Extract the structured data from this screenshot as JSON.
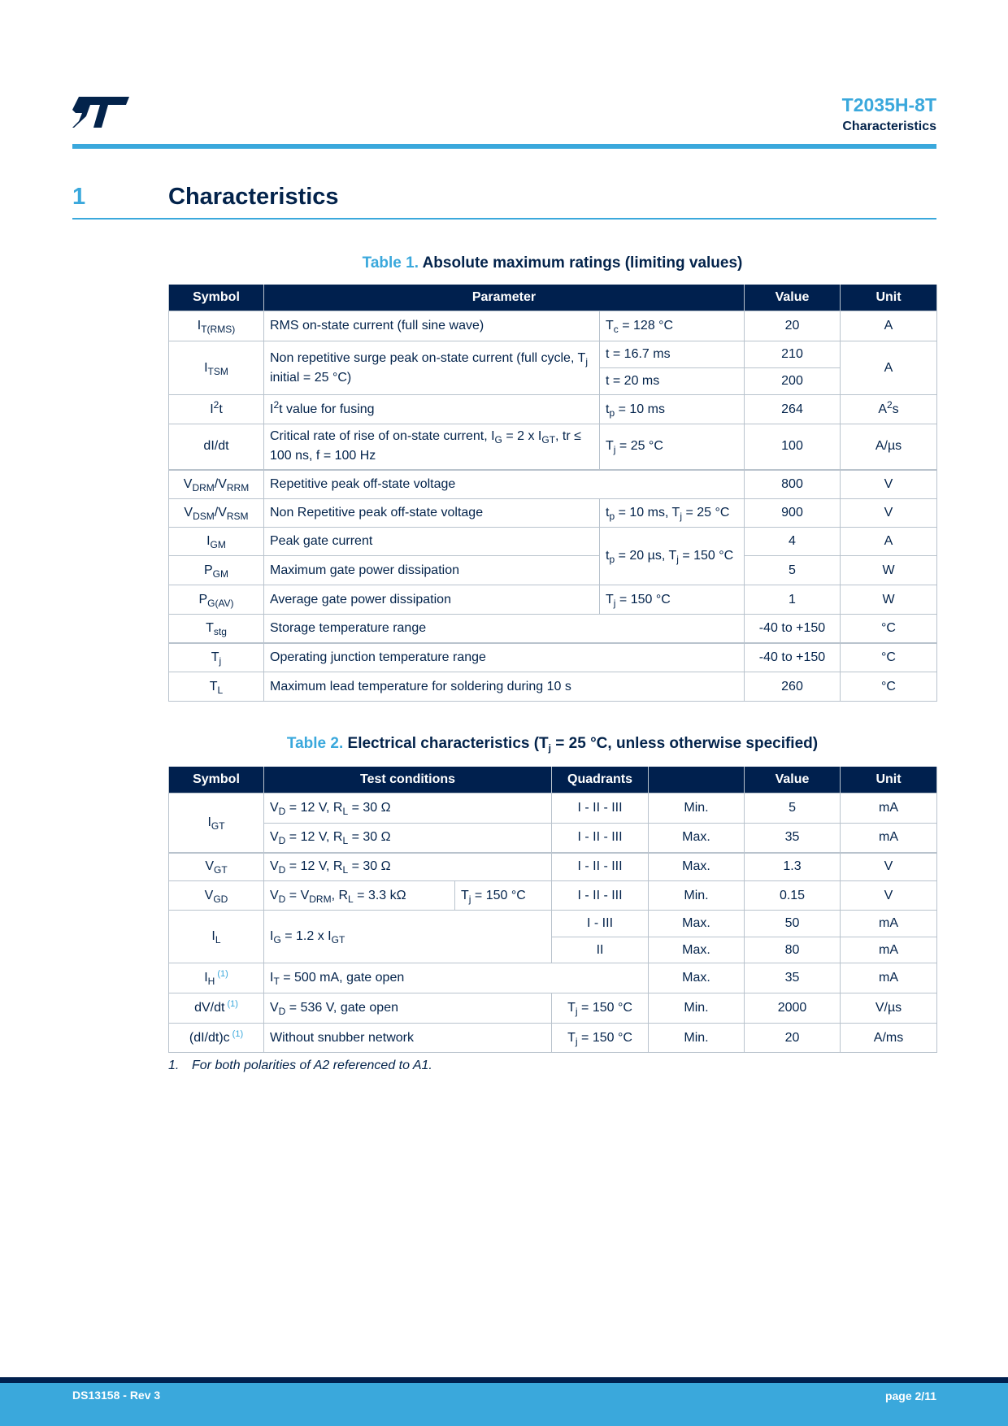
{
  "header": {
    "logo_text": "ST",
    "title": "T2035H-8T",
    "subtitle": "Characteristics"
  },
  "section": {
    "number": "1",
    "title": "Characteristics"
  },
  "colors": {
    "navy": "#00204e",
    "accent": "#3aa8dc",
    "border": "#b9c3cd"
  },
  "table1": {
    "caption_label": "Table 1.",
    "caption_title": "Absolute maximum ratings (limiting values)",
    "headers": [
      "Symbol",
      "Parameter",
      "Value",
      "Unit"
    ],
    "rows": [
      {
        "symbol": [
          "I",
          {
            "sub": "T(RMS)"
          }
        ],
        "parameter": "RMS on-state current (full sine wave)",
        "condition": [
          "T",
          {
            "sub": "c"
          },
          " = 128 °C"
        ],
        "value": "20",
        "unit": "A"
      },
      {
        "symbol": [
          "I",
          {
            "sub": "TSM"
          }
        ],
        "parameter": [
          "Non repetitive surge peak on-state current (full cycle, T",
          {
            "sub": "j"
          },
          " initial = 25 °C)"
        ],
        "conditions": [
          "t = 16.7 ms",
          "t = 20 ms"
        ],
        "values": [
          "210",
          "200"
        ],
        "unit": "A"
      },
      {
        "symbol": [
          "I",
          {
            "sup": "2"
          },
          "t"
        ],
        "parameter": [
          "I",
          {
            "sup": "2"
          },
          "t value for fusing"
        ],
        "condition": [
          "t",
          {
            "sub": "p"
          },
          " = 10 ms"
        ],
        "value": "264",
        "unit": [
          "A",
          {
            "sup": "2"
          },
          "s"
        ]
      },
      {
        "symbol": "dI/dt",
        "parameter": [
          "Critical rate of rise of on-state current, I",
          {
            "sub": "G"
          },
          " = 2 x I",
          {
            "sub": "GT"
          },
          ", tr ≤ 100 ns, f = 100 Hz"
        ],
        "condition": [
          "T",
          {
            "sub": "j"
          },
          " = 25 °C"
        ],
        "value": "100",
        "unit": "A/µs"
      },
      {
        "symbol": [
          "V",
          {
            "sub": "DRM"
          },
          "/V",
          {
            "sub": "RRM"
          }
        ],
        "parameter": "Repetitive peak off-state voltage",
        "value": "800",
        "unit": "V"
      },
      {
        "symbol": [
          "V",
          {
            "sub": "DSM"
          },
          "/V",
          {
            "sub": "RSM"
          }
        ],
        "parameter": "Non Repetitive peak off-state voltage",
        "condition": [
          "t",
          {
            "sub": "p"
          },
          " = 10 ms, T",
          {
            "sub": "j"
          },
          " = 25 °C"
        ],
        "value": "900",
        "unit": "V"
      },
      {
        "symbol": [
          "I",
          {
            "sub": "GM"
          }
        ],
        "parameter": "Peak gate current",
        "condition": [
          "t",
          {
            "sub": "p"
          },
          " = 20 µs, T",
          {
            "sub": "j"
          },
          " = 150 °C"
        ],
        "value": "4",
        "unit": "A"
      },
      {
        "symbol": [
          "P",
          {
            "sub": "GM"
          }
        ],
        "parameter": "Maximum gate power dissipation",
        "value": "5",
        "unit": "W"
      },
      {
        "symbol": [
          "P",
          {
            "sub": "G(AV)"
          }
        ],
        "parameter": "Average gate power dissipation",
        "condition": [
          "T",
          {
            "sub": "j"
          },
          " = 150 °C"
        ],
        "value": "1",
        "unit": "W"
      },
      {
        "symbol": [
          "T",
          {
            "sub": "stg"
          }
        ],
        "parameter": "Storage temperature range",
        "value": "-40 to +150",
        "unit": "°C"
      },
      {
        "symbol": [
          "T",
          {
            "sub": "j"
          }
        ],
        "parameter": "Operating junction temperature range",
        "value": "-40 to +150",
        "unit": "°C"
      },
      {
        "symbol": [
          "T",
          {
            "sub": "L"
          }
        ],
        "parameter": "Maximum lead temperature for soldering during 10 s",
        "value": "260",
        "unit": "°C"
      }
    ]
  },
  "table2": {
    "caption_label": "Table 2.",
    "caption_title": [
      "Electrical characteristics (T",
      {
        "sub": "j"
      },
      " = 25 °C, unless otherwise specified)"
    ],
    "headers": [
      "Symbol",
      "Test conditions",
      "Quadrants",
      "",
      "Value",
      "Unit"
    ],
    "rows": [
      {
        "symbol": [
          "I",
          {
            "sub": "GT"
          }
        ],
        "condition": [
          "V",
          {
            "sub": "D"
          },
          " = 12 V, R",
          {
            "sub": "L"
          },
          " = 30 Ω"
        ],
        "quadrants": "I - II - III",
        "limit": "Min.",
        "value": "5",
        "unit": "mA"
      },
      {
        "condition": [
          "V",
          {
            "sub": "D"
          },
          " = 12 V, R",
          {
            "sub": "L"
          },
          " = 30 Ω"
        ],
        "quadrants": "I - II - III",
        "limit": "Max.",
        "value": "35",
        "unit": "mA"
      },
      {
        "symbol": [
          "V",
          {
            "sub": "GT"
          }
        ],
        "condition": [
          "V",
          {
            "sub": "D"
          },
          " = 12 V, R",
          {
            "sub": "L"
          },
          " = 30 Ω"
        ],
        "quadrants": "I - II - III",
        "limit": "Max.",
        "value": "1.3",
        "unit": "V"
      },
      {
        "symbol": [
          "V",
          {
            "sub": "GD"
          }
        ],
        "condition": [
          "V",
          {
            "sub": "D"
          },
          " = V",
          {
            "sub": "DRM"
          },
          ", R",
          {
            "sub": "L"
          },
          " = 3.3 kΩ"
        ],
        "temp": [
          "T",
          {
            "sub": "j"
          },
          " = 150 °C"
        ],
        "quadrants": "I - II - III",
        "limit": "Min.",
        "value": "0.15",
        "unit": "V"
      },
      {
        "symbol": [
          "I",
          {
            "sub": "L"
          }
        ],
        "condition": [
          "I",
          {
            "sub": "G"
          },
          " = 1.2 x I",
          {
            "sub": "GT"
          }
        ],
        "quadrants": "I - III",
        "limit": "Max.",
        "value": "50",
        "unit": "mA"
      },
      {
        "quadrants": "II",
        "limit": "Max.",
        "value": "80",
        "unit": "mA"
      },
      {
        "symbol": [
          "I",
          {
            "sub": "H"
          },
          {
            "note": "(1)"
          }
        ],
        "condition": [
          "I",
          {
            "sub": "T"
          },
          " = 500 mA, gate open"
        ],
        "limit": "Max.",
        "value": "35",
        "unit": "mA"
      },
      {
        "symbol": [
          "dV/dt",
          {
            "note": "(1)"
          }
        ],
        "condition": [
          "V",
          {
            "sub": "D"
          },
          " = 536 V, gate open"
        ],
        "temp": [
          "T",
          {
            "sub": "j"
          },
          " = 150 °C"
        ],
        "limit": "Min.",
        "value": "2000",
        "unit": "V/µs"
      },
      {
        "symbol": [
          "(dI/dt)c",
          {
            "note": "(1)"
          }
        ],
        "condition": "Without snubber network",
        "temp": [
          "T",
          {
            "sub": "j"
          },
          " = 150 °C"
        ],
        "limit": "Min.",
        "value": "20",
        "unit": "A/ms"
      }
    ],
    "footnote": {
      "number": "1.",
      "text": "For both polarities of A2 referenced to A1."
    }
  },
  "footer": {
    "doc_id": "DS13158 - Rev 3",
    "page": "page 2/11"
  }
}
